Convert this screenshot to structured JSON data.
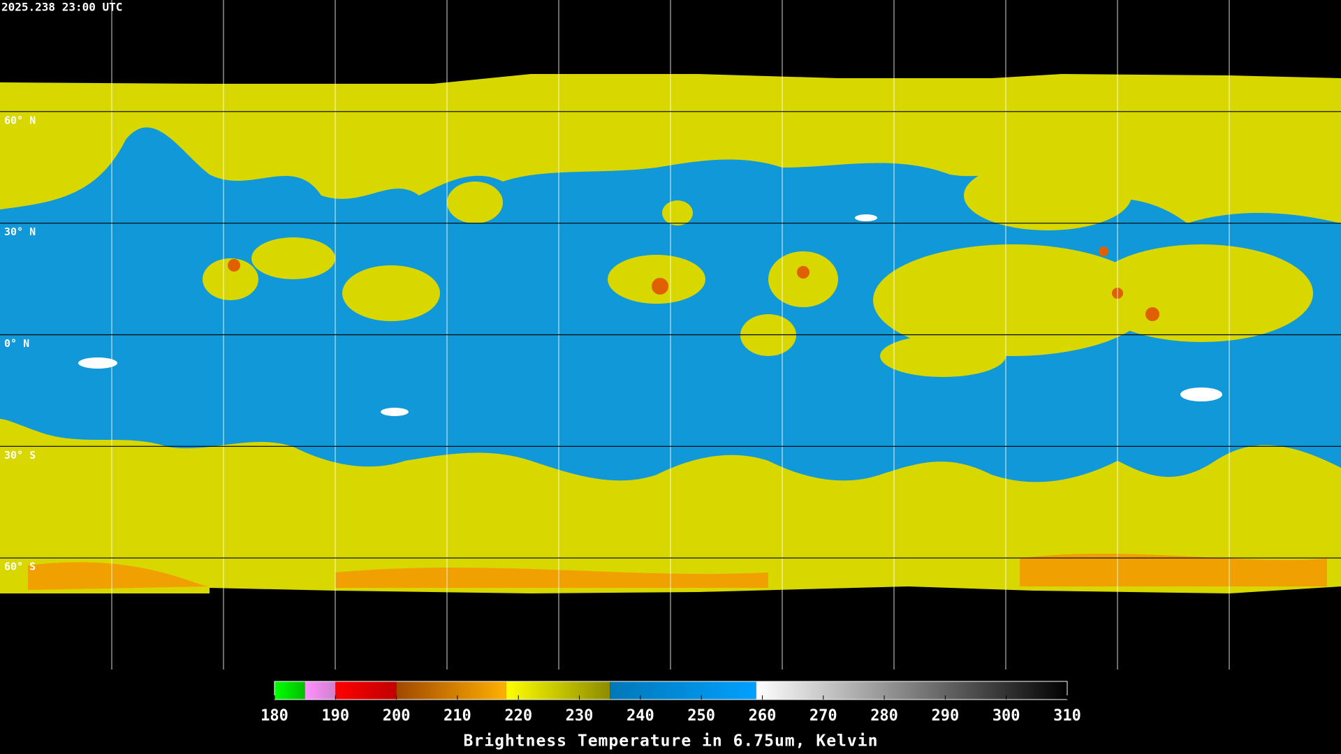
{
  "timestamp": "2025.238 23:00 UTC",
  "latitude_labels": [
    "60° N",
    "30° N",
    "0° N",
    "30° S",
    "60° S"
  ],
  "colorbar": {
    "title": "Brightness Temperature in 6.75um, Kelvin",
    "range": [
      180,
      310
    ],
    "ticks": [
      180,
      190,
      200,
      210,
      220,
      230,
      240,
      250,
      260,
      270,
      280,
      290,
      300,
      310
    ],
    "bands": [
      {
        "from": 180,
        "to": 185,
        "colors": [
          "#00ff00",
          "#00c000"
        ]
      },
      {
        "from": 185,
        "to": 190,
        "colors": [
          "#ff90ff",
          "#d080d0"
        ]
      },
      {
        "from": 190,
        "to": 200,
        "colors": [
          "#ff0000",
          "#c00000"
        ]
      },
      {
        "from": 200,
        "to": 218,
        "colors": [
          "#a04800",
          "#ffb000"
        ]
      },
      {
        "from": 218,
        "to": 235,
        "colors": [
          "#ffff00",
          "#8c8c00"
        ]
      },
      {
        "from": 235,
        "to": 259,
        "colors": [
          "#0078b8",
          "#00a0ff"
        ]
      },
      {
        "from": 259,
        "to": 310,
        "colors": [
          "#ffffff",
          "#000000"
        ]
      }
    ]
  }
}
